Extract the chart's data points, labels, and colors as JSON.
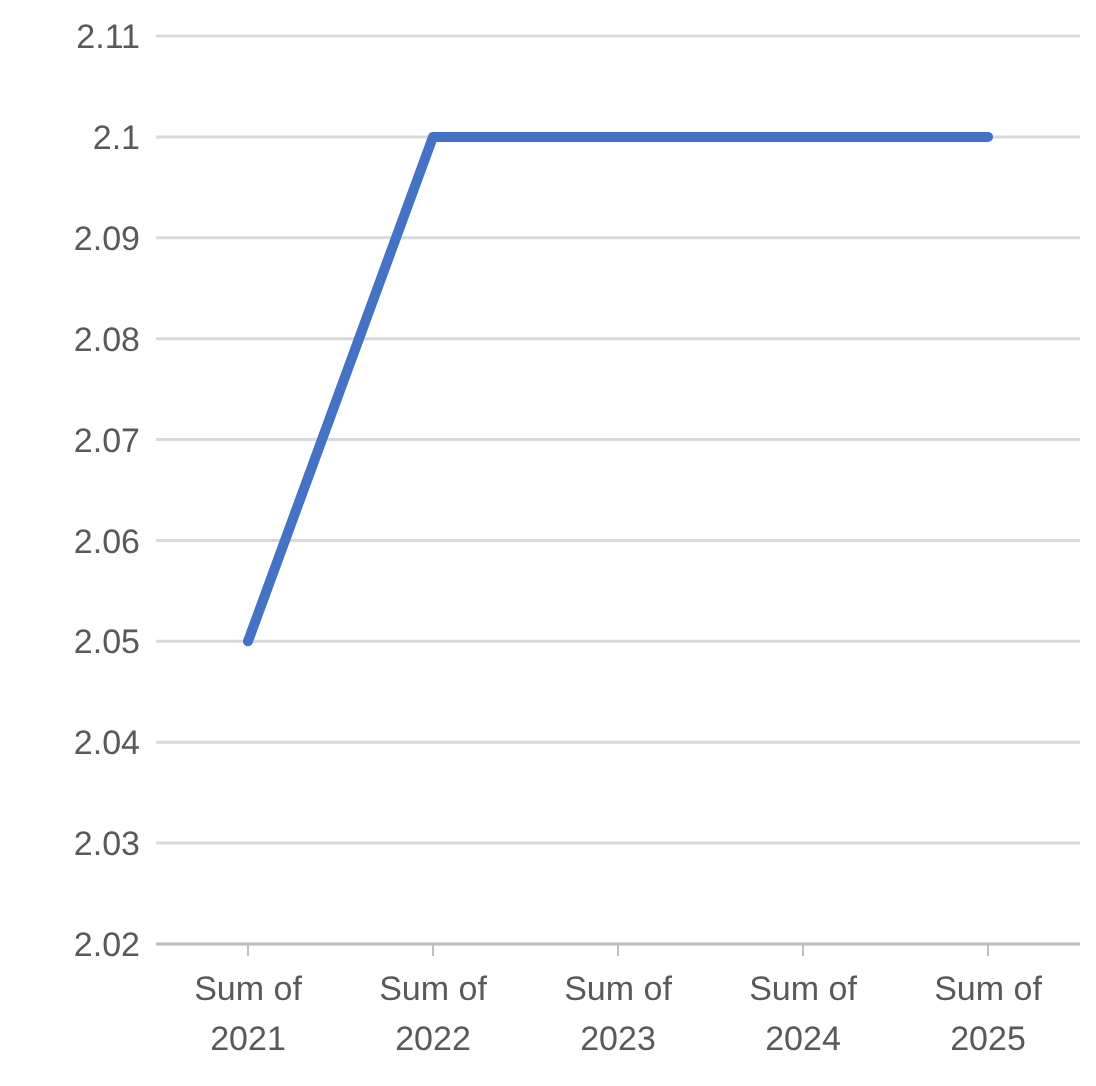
{
  "chart_data": {
    "type": "line",
    "categories": [
      "Sum of 2021",
      "Sum of 2022",
      "Sum of 2023",
      "Sum of 2024",
      "Sum of 2025"
    ],
    "series": [
      {
        "color": "#4472c4",
        "values": [
          2.05,
          2.1,
          2.1,
          2.1,
          2.1
        ]
      }
    ],
    "ylim": [
      2.02,
      2.11
    ],
    "yticks": [
      2.02,
      2.03,
      2.04,
      2.05,
      2.06,
      2.07,
      2.08,
      2.09,
      2.1,
      2.11
    ],
    "grid": "y",
    "legend": false,
    "marker": "none",
    "line_style": "solid"
  }
}
